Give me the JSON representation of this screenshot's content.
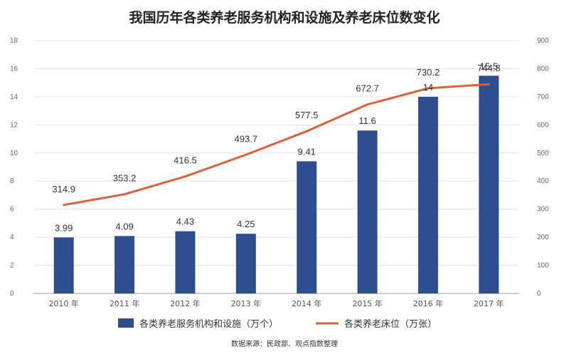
{
  "title": "我国历年各类养老服务机构和设施及养老床位数变化",
  "source": "数据来源：民政部、观点指数整理",
  "colors": {
    "bar": "#2e4f8f",
    "line": "#d9623b",
    "grid": "#e3e3e3",
    "axis": "#9a9a9a"
  },
  "chart_data": {
    "type": "bar+line",
    "categories": [
      "2010 年",
      "2011 年",
      "2012 年",
      "2013 年",
      "2014 年",
      "2015 年",
      "2016 年",
      "2017 年"
    ],
    "series": [
      {
        "name": "各类养老服务机构和设施（万个）",
        "type": "bar",
        "axis": "left",
        "values": [
          3.99,
          4.09,
          4.43,
          4.25,
          9.41,
          11.6,
          14,
          15.5
        ],
        "labels": [
          "3.99",
          "4.09",
          "4.43",
          "4.25",
          "9.41",
          "11.6",
          "14",
          "15.5"
        ]
      },
      {
        "name": "各类养老床位（万张）",
        "type": "line",
        "axis": "right",
        "values": [
          314.9,
          353.2,
          416.5,
          493.7,
          577.5,
          672.7,
          730.2,
          744.8
        ],
        "labels": [
          "314.9",
          "353.2",
          "416.5",
          "493.7",
          "577.5",
          "672.7",
          "730.2",
          "744.8"
        ]
      }
    ],
    "y_left": {
      "min": 0,
      "max": 18,
      "ticks": [
        "0",
        "2",
        "4",
        "6",
        "8",
        "10",
        "12",
        "14",
        "16",
        "18"
      ]
    },
    "y_right": {
      "min": 0,
      "max": 900,
      "ticks": [
        "0",
        "100",
        "200",
        "300",
        "400",
        "500",
        "600",
        "700",
        "800",
        "900"
      ]
    },
    "grid": true,
    "legend_position": "bottom"
  }
}
